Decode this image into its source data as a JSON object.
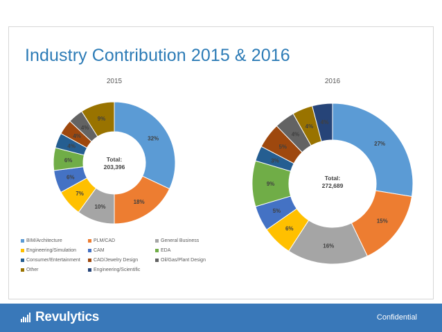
{
  "slide": {
    "title": "Industry Contribution 2015 & 2016",
    "footer_label": "Confidential",
    "logo_text": "Revulytics"
  },
  "colors": {
    "accent": "#3978b9",
    "title": "#2c7bb6"
  },
  "chart_data": [
    {
      "type": "pie",
      "variant": "donut",
      "title": "2015",
      "center_label": "Total:",
      "center_value": "203,396",
      "categories": [
        "BIM/Architecture",
        "PLM/CAD",
        "General Business",
        "Engineering/Simulation",
        "CAM",
        "EDA",
        "Consumer/Entertainment",
        "CAD/Jewelry Design",
        "Oil/Gas/Plant Design",
        "Other"
      ],
      "values": [
        32,
        18,
        10,
        7,
        6,
        6,
        4,
        4,
        4,
        9
      ],
      "labels": [
        "32%",
        "18%",
        "10%",
        "7%",
        "6%",
        "6%",
        "4%",
        "4%",
        "4%",
        "9%"
      ],
      "colors": [
        "#5b9bd5",
        "#ed7d31",
        "#a5a5a5",
        "#ffc000",
        "#4472c4",
        "#70ad47",
        "#255e91",
        "#9e480e",
        "#636363",
        "#997300"
      ],
      "legend_position": "bottom"
    },
    {
      "type": "pie",
      "variant": "donut",
      "title": "2016",
      "center_label": "Total:",
      "center_value": "272,689",
      "categories": [
        "BIM/Architecture",
        "PLM/CAD",
        "General Business",
        "Engineering/Simulation",
        "CAM",
        "EDA",
        "Consumer/Entertainment",
        "CAD/Jewelry Design",
        "Oil/Gas/Plant Design",
        "Other",
        "Engineering/Scientific"
      ],
      "values": [
        27,
        15,
        16,
        6,
        5,
        9,
        3,
        5,
        4,
        4,
        4
      ],
      "labels": [
        "27%",
        "15%",
        "16%",
        "6%",
        "5%",
        "9%",
        "3%",
        "5%",
        "4%",
        "4%",
        "4%"
      ],
      "colors": [
        "#5b9bd5",
        "#ed7d31",
        "#a5a5a5",
        "#ffc000",
        "#4472c4",
        "#70ad47",
        "#255e91",
        "#9e480e",
        "#636363",
        "#997300",
        "#264478"
      ]
    }
  ],
  "legend": [
    {
      "label": "BIM/Architecture",
      "color": "#5b9bd5"
    },
    {
      "label": "PLM/CAD",
      "color": "#ed7d31"
    },
    {
      "label": "General Business",
      "color": "#a5a5a5"
    },
    {
      "label": "Engineering/Simulation",
      "color": "#ffc000"
    },
    {
      "label": "CAM",
      "color": "#4472c4"
    },
    {
      "label": "EDA",
      "color": "#70ad47"
    },
    {
      "label": "Consumer/Entertainment",
      "color": "#255e91"
    },
    {
      "label": "CAD/Jewelry Design",
      "color": "#9e480e"
    },
    {
      "label": "Oil/Gas/Plant Design",
      "color": "#636363"
    },
    {
      "label": "Other",
      "color": "#997300"
    },
    {
      "label": "Engineering/Scientific",
      "color": "#264478"
    }
  ]
}
